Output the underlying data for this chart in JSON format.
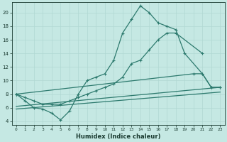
{
  "xlabel": "Humidex (Indice chaleur)",
  "background_color": "#c5e8e3",
  "line_color": "#2d7a6e",
  "grid_color": "#b0d8d2",
  "font_color": "#1a3a30",
  "xlim": [
    -0.5,
    23.5
  ],
  "ylim": [
    3.5,
    21.5
  ],
  "x_ticks": [
    0,
    1,
    2,
    3,
    4,
    5,
    6,
    7,
    8,
    9,
    10,
    11,
    12,
    13,
    14,
    15,
    16,
    17,
    18,
    19,
    20,
    21,
    22,
    23
  ],
  "y_ticks": [
    4,
    6,
    8,
    10,
    12,
    14,
    16,
    18,
    20
  ],
  "curve1_x": [
    0,
    1,
    2,
    3,
    4,
    5,
    6,
    7,
    8,
    9,
    10,
    11,
    12,
    13,
    14,
    15,
    16,
    17,
    18,
    19,
    21,
    22,
    23
  ],
  "curve1_y": [
    8,
    7,
    6,
    5.8,
    5.2,
    4.2,
    5.5,
    8,
    10,
    10.5,
    11,
    13,
    17,
    19,
    21,
    20,
    18.5,
    18,
    17.5,
    14,
    11,
    9,
    9
  ],
  "curve2_x": [
    0,
    1,
    2,
    3,
    4,
    5,
    6,
    7,
    8,
    9,
    10,
    11,
    12,
    13,
    14,
    15,
    16,
    17,
    18,
    21
  ],
  "curve2_y": [
    8,
    7.5,
    7,
    6.5,
    6.5,
    6.5,
    7,
    7.5,
    8,
    8.5,
    9,
    9.5,
    10.5,
    12.5,
    13,
    14.5,
    16,
    17,
    17,
    14
  ],
  "curve3_x": [
    0,
    20,
    21,
    22,
    23
  ],
  "curve3_y": [
    8,
    11,
    11,
    9,
    9
  ],
  "curve4_x": [
    0,
    23
  ],
  "curve4_y": [
    6.2,
    9.0
  ],
  "curve5_x": [
    0,
    23
  ],
  "curve5_y": [
    5.8,
    8.3
  ]
}
